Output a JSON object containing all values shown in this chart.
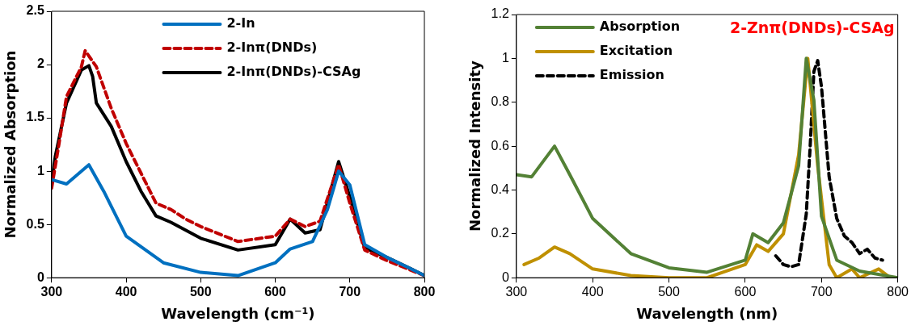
{
  "chart_data": [
    {
      "type": "line",
      "xlabel": "Wavelength (cm⁻¹)",
      "ylabel": "Normalized Absorption",
      "xlim": [
        300,
        800
      ],
      "xticks": [
        300,
        400,
        500,
        600,
        700,
        800
      ],
      "ylim": [
        0,
        2.5
      ],
      "yticks": [
        0,
        0.5,
        1,
        1.5,
        2,
        2.5
      ],
      "grid": false,
      "legend": "top",
      "marker": "none",
      "series": [
        {
          "name": "2-In",
          "color": "#0070c0",
          "line_style": "solid",
          "x": [
            300,
            320,
            350,
            370,
            400,
            450,
            500,
            550,
            600,
            620,
            650,
            670,
            685,
            700,
            720,
            750,
            780,
            800
          ],
          "values": [
            0.92,
            0.88,
            1.06,
            0.81,
            0.39,
            0.14,
            0.05,
            0.02,
            0.14,
            0.27,
            0.34,
            0.64,
            1.0,
            0.87,
            0.31,
            0.19,
            0.09,
            0.02
          ]
        },
        {
          "name": "2-Inπ(DNDs)",
          "color": "#c00000",
          "line_style": "dashed",
          "x": [
            300,
            310,
            320,
            340,
            345,
            360,
            380,
            400,
            420,
            440,
            460,
            480,
            500,
            550,
            600,
            620,
            640,
            660,
            685,
            700,
            720,
            750,
            800
          ],
          "values": [
            0.84,
            1.26,
            1.7,
            1.98,
            2.13,
            1.98,
            1.59,
            1.26,
            0.98,
            0.7,
            0.64,
            0.55,
            0.48,
            0.34,
            0.39,
            0.55,
            0.48,
            0.53,
            1.06,
            0.7,
            0.26,
            0.16,
            0.02
          ]
        },
        {
          "name": "2-Inπ(DNDs)-CSAg",
          "color": "#000000",
          "line_style": "solid",
          "x": [
            300,
            305,
            320,
            340,
            350,
            355,
            360,
            380,
            400,
            420,
            440,
            460,
            500,
            550,
            600,
            620,
            640,
            660,
            685,
            700,
            720,
            750,
            780,
            800
          ],
          "values": [
            0.89,
            1.14,
            1.64,
            1.95,
            1.99,
            1.89,
            1.64,
            1.42,
            1.09,
            0.81,
            0.58,
            0.52,
            0.37,
            0.26,
            0.31,
            0.55,
            0.42,
            0.45,
            1.09,
            0.76,
            0.28,
            0.19,
            0.09,
            0.02
          ]
        }
      ]
    },
    {
      "type": "line",
      "xlabel": "Wavelength (nm)",
      "ylabel": "Normalized Intensity",
      "xlim": [
        300,
        800
      ],
      "xticks": [
        300,
        400,
        500,
        600,
        700,
        800
      ],
      "ylim": [
        0,
        1.2
      ],
      "yticks": [
        0,
        0.2,
        0.4,
        0.6,
        0.8,
        1,
        1.2
      ],
      "grid": false,
      "legend": "top left",
      "marker": "none",
      "annotations": [
        "2-Znπ(DNDs)-CSAg"
      ],
      "series": [
        {
          "name": "Absorption",
          "color": "#538135",
          "line_style": "solid",
          "x": [
            300,
            320,
            350,
            370,
            400,
            450,
            500,
            550,
            600,
            610,
            630,
            650,
            670,
            680,
            690,
            700,
            720,
            750,
            800
          ],
          "values": [
            0.47,
            0.46,
            0.6,
            0.47,
            0.27,
            0.11,
            0.045,
            0.025,
            0.08,
            0.2,
            0.16,
            0.25,
            0.51,
            1.0,
            0.81,
            0.28,
            0.08,
            0.03,
            0
          ]
        },
        {
          "name": "Excitation",
          "color": "#bf9000",
          "line_style": "solid",
          "x": [
            310,
            330,
            350,
            370,
            400,
            450,
            500,
            550,
            600,
            615,
            630,
            650,
            670,
            682,
            695,
            710,
            720,
            740,
            750,
            775,
            790
          ],
          "values": [
            0.06,
            0.09,
            0.14,
            0.11,
            0.04,
            0.01,
            0,
            0,
            0.06,
            0.15,
            0.12,
            0.2,
            0.56,
            1.0,
            0.51,
            0.06,
            0,
            0.04,
            0,
            0.04,
            0
          ]
        },
        {
          "name": "Emission",
          "color": "#000000",
          "line_style": "dashed",
          "x": [
            640,
            650,
            660,
            670,
            680,
            685,
            690,
            695,
            700,
            710,
            720,
            730,
            740,
            750,
            760,
            770,
            780
          ],
          "values": [
            0.1,
            0.06,
            0.05,
            0.06,
            0.29,
            0.59,
            0.94,
            0.99,
            0.87,
            0.46,
            0.27,
            0.19,
            0.16,
            0.11,
            0.13,
            0.09,
            0.08
          ]
        }
      ]
    }
  ]
}
